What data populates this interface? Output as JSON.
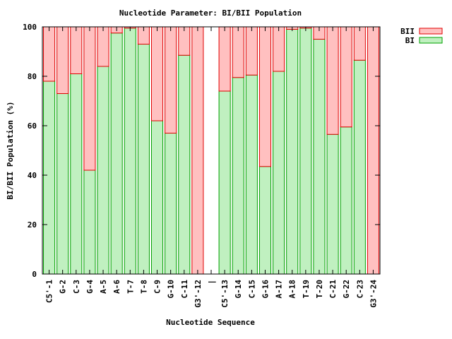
{
  "chart_data": {
    "type": "bar",
    "stacked": true,
    "title": "Nucleotide Parameter: BI/BII Population",
    "xlabel": "Nucleotide Sequence",
    "ylabel": "BI/BII Population (%)",
    "ylim": [
      0,
      100
    ],
    "yticks": [
      "0",
      "20",
      "40",
      "60",
      "80",
      "100"
    ],
    "legend_position": "top-right",
    "categories": [
      "C5'-1",
      "G-2",
      "C-3",
      "G-4",
      "A-5",
      "A-6",
      "T-7",
      "T-8",
      "C-9",
      "G-10",
      "C-11",
      "G3'-12",
      "|",
      "C5'-13",
      "G-14",
      "C-15",
      "G-16",
      "A-17",
      "A-18",
      "T-19",
      "T-20",
      "C-21",
      "G-22",
      "C-23",
      "G3'-24"
    ],
    "series": [
      {
        "name": "BI",
        "color_fill": "#c0f0c0",
        "color_edge": "#00a000",
        "values": [
          78,
          73,
          81,
          42,
          84,
          97.5,
          99.5,
          93,
          62,
          57,
          88.5,
          0,
          null,
          74,
          79.5,
          80.5,
          43.5,
          82,
          99,
          99.5,
          95,
          56.5,
          59.5,
          86.5,
          0
        ]
      },
      {
        "name": "BII",
        "color_fill": "#ffc0c0",
        "color_edge": "#e00000",
        "values": [
          22,
          27,
          19,
          58,
          16,
          2.5,
          0.5,
          7,
          38,
          43,
          11.5,
          100,
          null,
          26,
          20.5,
          19.5,
          56.5,
          18,
          1,
          0.5,
          5,
          43.5,
          40.5,
          13.5,
          100
        ]
      }
    ]
  }
}
